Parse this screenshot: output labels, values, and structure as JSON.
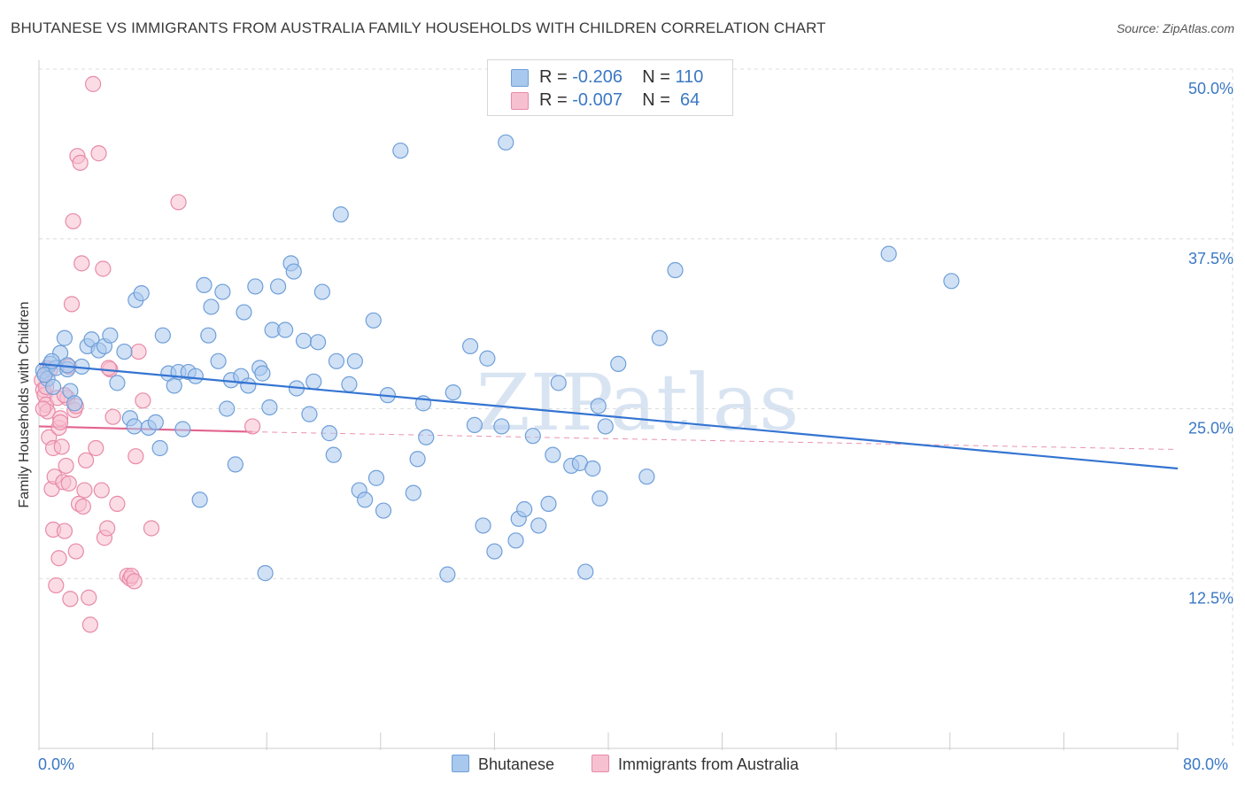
{
  "title": "BHUTANESE VS IMMIGRANTS FROM AUSTRALIA FAMILY HOUSEHOLDS WITH CHILDREN CORRELATION CHART",
  "source": "Source: ZipAtlas.com",
  "watermark": "ZIPatlas",
  "colors": {
    "blue_fill": "#a9c8ee",
    "blue_stroke": "#6f9fd8",
    "blue_line": "#3474d2",
    "pink_fill": "#f7c0d0",
    "pink_stroke": "#e88aa8",
    "pink_line": "#e3648e",
    "grid": "#dcdcdc",
    "tick_label": "#3b78c4"
  },
  "legend_top": {
    "rows": [
      {
        "r_label": "R = ",
        "r_value": "-0.206",
        "n_label": "N = ",
        "n_value": "110"
      },
      {
        "r_label": "R = ",
        "r_value": "-0.007",
        "n_label": "N = ",
        "n_value": " 64"
      }
    ]
  },
  "chart_data": {
    "type": "scatter",
    "title": "BHUTANESE VS IMMIGRANTS FROM AUSTRALIA FAMILY HOUSEHOLDS WITH CHILDREN CORRELATION CHART",
    "xlabel": "",
    "ylabel": "Family Households with Children",
    "xlim": [
      0,
      80
    ],
    "ylim": [
      0,
      50
    ],
    "x_tick_labels": [
      "0.0%",
      "80.0%"
    ],
    "y_ticks": [
      12.5,
      25.0,
      37.5,
      50.0
    ],
    "y_tick_labels": [
      "12.5%",
      "25.0%",
      "37.5%",
      "50.0%"
    ],
    "grid": true,
    "legend_position": "bottom",
    "series": [
      {
        "name": "Bhutanese",
        "color": "blue",
        "trend": {
          "x": [
            0,
            80
          ],
          "y": [
            28.3,
            20.6
          ]
        },
        "points": [
          [
            0.3,
            27.8
          ],
          [
            0.6,
            27.2
          ],
          [
            0.8,
            28.3
          ],
          [
            1.0,
            26.6
          ],
          [
            0.4,
            27.5
          ],
          [
            1.2,
            28.0
          ],
          [
            1.5,
            29.1
          ],
          [
            1.8,
            30.2
          ],
          [
            2.0,
            27.9
          ],
          [
            2.2,
            26.3
          ],
          [
            2.5,
            25.4
          ],
          [
            3.0,
            28.1
          ],
          [
            3.4,
            29.6
          ],
          [
            3.7,
            30.1
          ],
          [
            4.2,
            29.3
          ],
          [
            4.6,
            29.6
          ],
          [
            5.0,
            30.4
          ],
          [
            5.5,
            26.9
          ],
          [
            6.0,
            29.2
          ],
          [
            6.4,
            24.3
          ],
          [
            6.7,
            23.7
          ],
          [
            6.8,
            33.0
          ],
          [
            7.2,
            33.5
          ],
          [
            7.7,
            23.6
          ],
          [
            8.2,
            24.0
          ],
          [
            8.5,
            22.1
          ],
          [
            8.7,
            30.4
          ],
          [
            9.1,
            27.6
          ],
          [
            9.5,
            26.7
          ],
          [
            9.8,
            27.7
          ],
          [
            10.1,
            23.5
          ],
          [
            10.5,
            27.7
          ],
          [
            11.0,
            27.4
          ],
          [
            11.3,
            18.3
          ],
          [
            11.9,
            30.4
          ],
          [
            12.1,
            32.5
          ],
          [
            12.6,
            28.5
          ],
          [
            12.9,
            33.6
          ],
          [
            13.2,
            25.0
          ],
          [
            13.5,
            27.1
          ],
          [
            13.8,
            20.9
          ],
          [
            14.2,
            27.4
          ],
          [
            14.4,
            32.1
          ],
          [
            14.7,
            26.7
          ],
          [
            15.2,
            34.0
          ],
          [
            15.5,
            28.0
          ],
          [
            15.7,
            27.6
          ],
          [
            15.9,
            12.9
          ],
          [
            16.2,
            25.1
          ],
          [
            16.4,
            30.8
          ],
          [
            16.8,
            34.0
          ],
          [
            17.3,
            30.8
          ],
          [
            17.7,
            35.7
          ],
          [
            17.9,
            35.1
          ],
          [
            18.1,
            26.5
          ],
          [
            18.6,
            30.0
          ],
          [
            19.0,
            24.6
          ],
          [
            19.3,
            27.0
          ],
          [
            19.6,
            29.9
          ],
          [
            19.9,
            33.6
          ],
          [
            20.4,
            23.2
          ],
          [
            20.7,
            21.6
          ],
          [
            20.9,
            28.5
          ],
          [
            21.2,
            39.3
          ],
          [
            21.8,
            26.8
          ],
          [
            22.2,
            28.5
          ],
          [
            22.5,
            19.0
          ],
          [
            22.9,
            18.3
          ],
          [
            23.5,
            31.5
          ],
          [
            23.7,
            19.9
          ],
          [
            24.2,
            17.5
          ],
          [
            24.5,
            26.0
          ],
          [
            25.4,
            44.0
          ],
          [
            26.3,
            18.8
          ],
          [
            26.6,
            21.3
          ],
          [
            27.0,
            25.4
          ],
          [
            27.2,
            22.9
          ],
          [
            28.7,
            12.8
          ],
          [
            29.1,
            26.2
          ],
          [
            30.3,
            29.6
          ],
          [
            30.6,
            23.8
          ],
          [
            31.2,
            16.4
          ],
          [
            31.5,
            28.7
          ],
          [
            32.0,
            14.5
          ],
          [
            32.5,
            23.7
          ],
          [
            32.8,
            44.6
          ],
          [
            33.5,
            15.3
          ],
          [
            33.7,
            16.9
          ],
          [
            34.1,
            17.6
          ],
          [
            34.7,
            23.0
          ],
          [
            35.1,
            16.4
          ],
          [
            35.8,
            18.0
          ],
          [
            36.1,
            21.6
          ],
          [
            37.4,
            20.8
          ],
          [
            38.0,
            21.0
          ],
          [
            38.4,
            13.0
          ],
          [
            38.9,
            20.6
          ],
          [
            39.3,
            25.2
          ],
          [
            39.4,
            18.4
          ],
          [
            39.8,
            23.7
          ],
          [
            40.7,
            28.3
          ],
          [
            42.7,
            20.0
          ],
          [
            43.6,
            30.2
          ],
          [
            44.7,
            35.2
          ],
          [
            59.7,
            36.4
          ],
          [
            64.1,
            34.4
          ],
          [
            36.5,
            26.9
          ],
          [
            11.6,
            34.1
          ],
          [
            2.0,
            28.2
          ],
          [
            0.9,
            28.5
          ]
        ]
      },
      {
        "name": "Immigrants from Australia",
        "color": "pink",
        "trend": {
          "x": [
            0,
            15
          ],
          "y": [
            23.7,
            23.3
          ],
          "dashed_extension_to": [
            80,
            22.0
          ]
        },
        "points": [
          [
            0.2,
            27.1
          ],
          [
            0.3,
            26.4
          ],
          [
            0.4,
            26.0
          ],
          [
            0.5,
            25.3
          ],
          [
            0.6,
            24.8
          ],
          [
            0.6,
            28.0
          ],
          [
            0.7,
            22.9
          ],
          [
            0.8,
            27.9
          ],
          [
            0.9,
            19.1
          ],
          [
            1.0,
            16.1
          ],
          [
            1.0,
            22.1
          ],
          [
            1.1,
            20.0
          ],
          [
            1.2,
            12.0
          ],
          [
            1.3,
            25.8
          ],
          [
            1.4,
            23.6
          ],
          [
            1.4,
            14.0
          ],
          [
            1.5,
            24.3
          ],
          [
            1.6,
            22.2
          ],
          [
            1.7,
            19.6
          ],
          [
            1.8,
            16.0
          ],
          [
            1.9,
            20.8
          ],
          [
            2.0,
            25.8
          ],
          [
            2.1,
            19.5
          ],
          [
            2.2,
            11.0
          ],
          [
            2.3,
            32.7
          ],
          [
            2.4,
            38.8
          ],
          [
            2.5,
            24.9
          ],
          [
            2.6,
            14.5
          ],
          [
            2.7,
            43.6
          ],
          [
            2.8,
            18.0
          ],
          [
            2.9,
            43.1
          ],
          [
            3.0,
            35.7
          ],
          [
            3.2,
            19.0
          ],
          [
            3.3,
            21.2
          ],
          [
            3.5,
            11.1
          ],
          [
            3.6,
            9.1
          ],
          [
            3.8,
            48.9
          ],
          [
            4.0,
            22.1
          ],
          [
            4.2,
            43.8
          ],
          [
            4.4,
            19.0
          ],
          [
            4.5,
            35.3
          ],
          [
            4.6,
            15.5
          ],
          [
            4.8,
            16.2
          ],
          [
            5.0,
            27.9
          ],
          [
            5.2,
            24.4
          ],
          [
            5.5,
            18.0
          ],
          [
            6.2,
            12.7
          ],
          [
            6.4,
            12.5
          ],
          [
            6.5,
            12.7
          ],
          [
            6.7,
            12.3
          ],
          [
            6.8,
            21.5
          ],
          [
            7.0,
            29.2
          ],
          [
            7.3,
            25.6
          ],
          [
            7.9,
            16.2
          ],
          [
            9.8,
            40.2
          ],
          [
            15.0,
            23.7
          ],
          [
            3.1,
            17.8
          ],
          [
            0.5,
            26.6
          ],
          [
            2.1,
            28.1
          ],
          [
            1.8,
            26.0
          ],
          [
            0.3,
            25.0
          ],
          [
            4.9,
            28.0
          ],
          [
            1.5,
            24.0
          ],
          [
            2.6,
            25.2
          ]
        ]
      }
    ]
  },
  "bottom_legend": {
    "items": [
      {
        "label": "Bhutanese"
      },
      {
        "label": "Immigrants from Australia"
      }
    ]
  }
}
